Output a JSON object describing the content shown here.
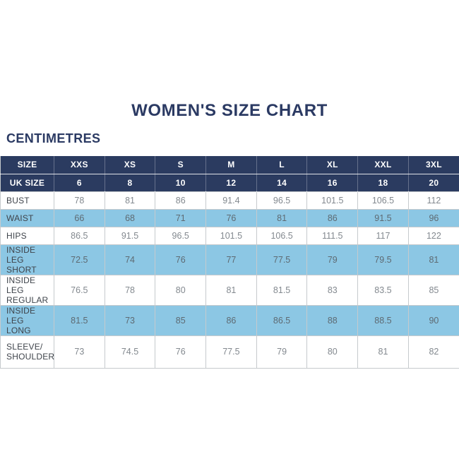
{
  "page": {
    "title": "WOMEN'S SIZE CHART",
    "units_heading": "CENTIMETRES"
  },
  "colors": {
    "navy": "#2B3B60",
    "title_text": "#2B3A63",
    "row_blue": "#8CC7E4",
    "row_white": "#FFFFFF",
    "border": "#C6CACD",
    "label_text": "#3F444B",
    "value_text": "#83898F",
    "header_text": "#FFFFFF"
  },
  "chart_data": {
    "type": "table",
    "title": "WOMEN'S SIZE CHART",
    "units": "CENTIMETRES",
    "columns": [
      "SIZE",
      "XXS",
      "XS",
      "S",
      "M",
      "L",
      "XL",
      "XXL",
      "3XL"
    ],
    "uk_size_row": {
      "label": "UK SIZE",
      "values": [
        "6",
        "8",
        "10",
        "12",
        "14",
        "16",
        "18",
        "20"
      ]
    },
    "measurement_rows": [
      {
        "label_lines": [
          "BUST"
        ],
        "shade": "white",
        "values": [
          "78",
          "81",
          "86",
          "91.4",
          "96.5",
          "101.5",
          "106.5",
          "112"
        ]
      },
      {
        "label_lines": [
          "WAIST"
        ],
        "shade": "blue",
        "values": [
          "66",
          "68",
          "71",
          "76",
          "81",
          "86",
          "91.5",
          "96"
        ]
      },
      {
        "label_lines": [
          "HIPS"
        ],
        "shade": "white",
        "values": [
          "86.5",
          "91.5",
          "96.5",
          "101.5",
          "106.5",
          "111.5",
          "117",
          "122"
        ]
      },
      {
        "label_lines": [
          "INSIDE LEG",
          "SHORT"
        ],
        "shade": "blue",
        "values": [
          "72.5",
          "74",
          "76",
          "77",
          "77.5",
          "79",
          "79.5",
          "81"
        ]
      },
      {
        "label_lines": [
          "INSIDE LEG",
          "REGULAR"
        ],
        "shade": "white",
        "values": [
          "76.5",
          "78",
          "80",
          "81",
          "81.5",
          "83",
          "83.5",
          "85"
        ]
      },
      {
        "label_lines": [
          "INSIDE LEG",
          "LONG"
        ],
        "shade": "blue",
        "values": [
          "81.5",
          "73",
          "85",
          "86",
          "86.5",
          "88",
          "88.5",
          "90"
        ]
      },
      {
        "label_lines": [
          "SLEEVE/",
          "SHOULDER"
        ],
        "shade": "white",
        "values": [
          "73",
          "74.5",
          "76",
          "77.5",
          "79",
          "80",
          "81",
          "82"
        ]
      }
    ]
  }
}
